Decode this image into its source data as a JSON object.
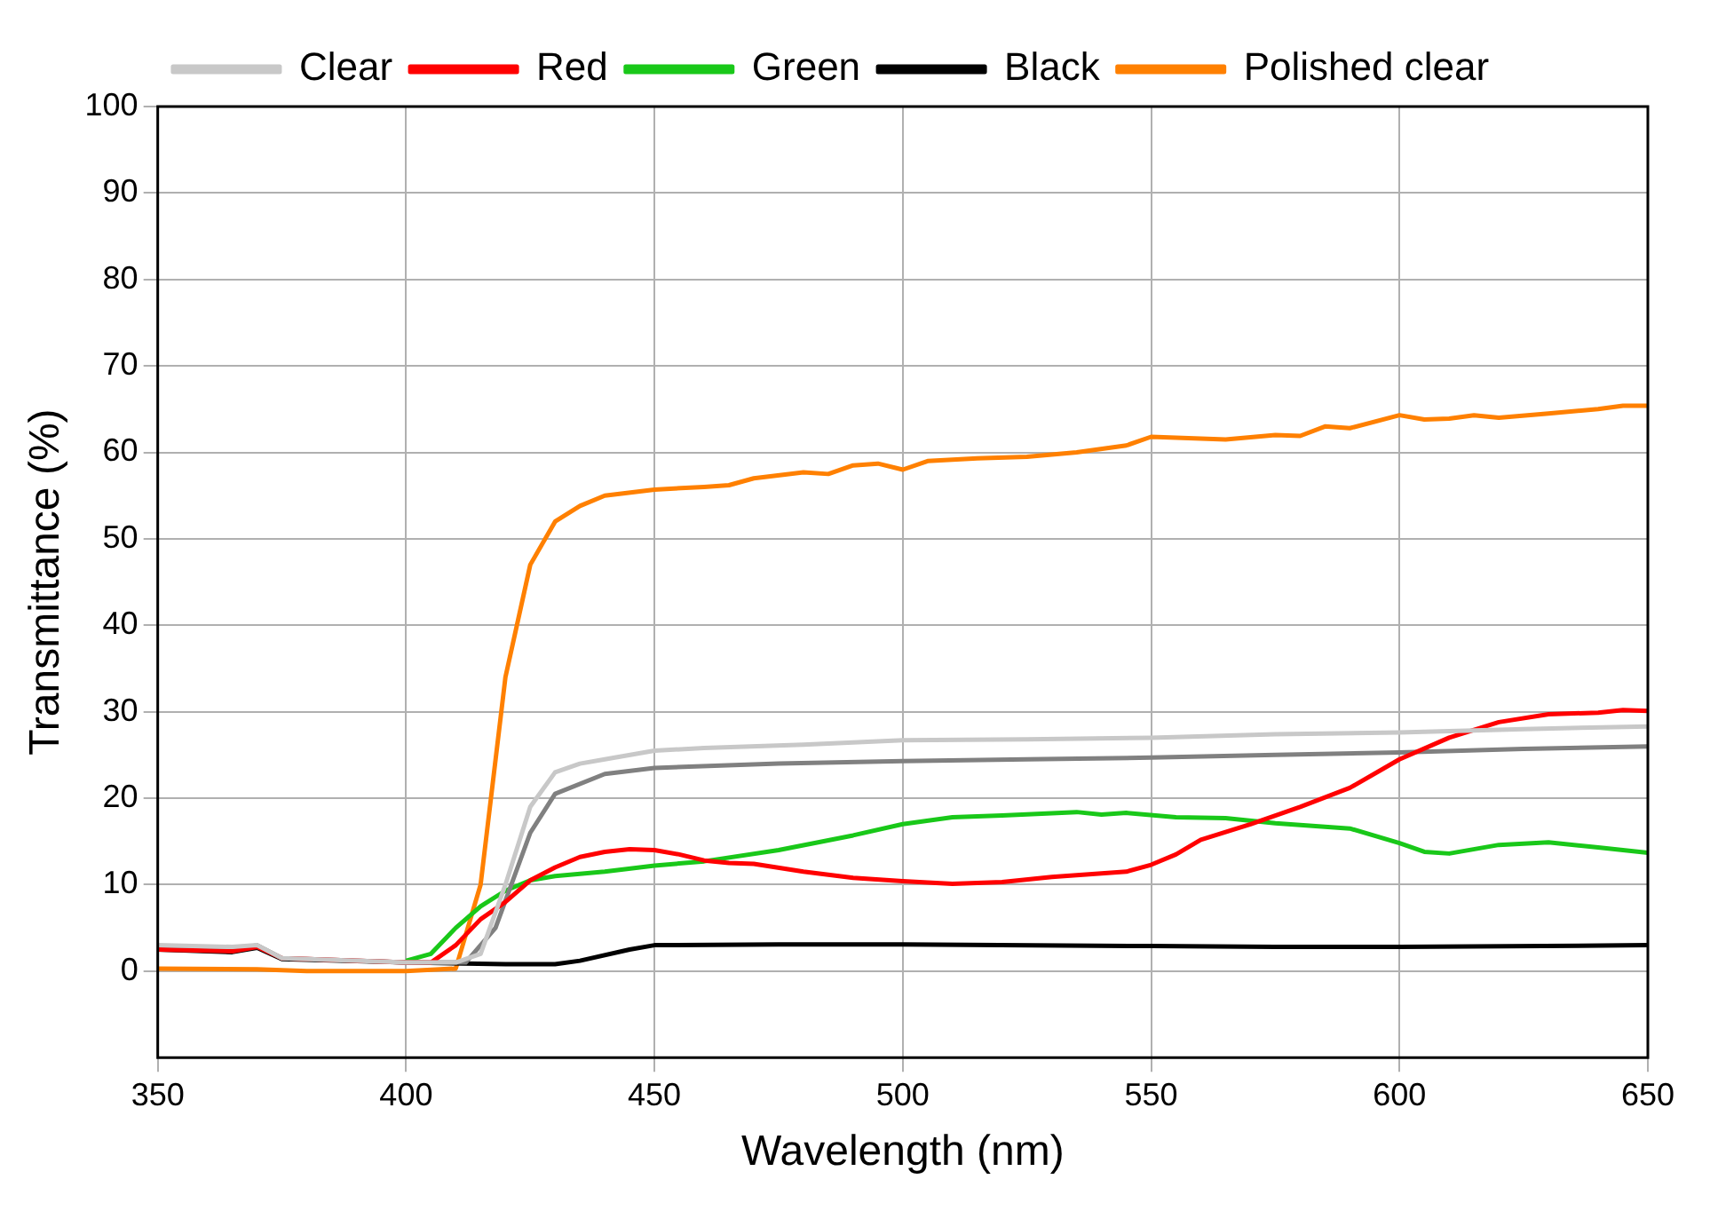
{
  "chart_data": {
    "type": "line",
    "xlabel": "Wavelength (nm)",
    "ylabel": "Transmittance (%)",
    "xlim": [
      350,
      650
    ],
    "xticks": [
      350,
      400,
      450,
      500,
      550,
      600,
      650
    ],
    "ylim": [
      -10,
      100
    ],
    "yticks": [
      0,
      10,
      20,
      30,
      40,
      50,
      60,
      70,
      80,
      90,
      100
    ],
    "grid": true,
    "legend": "top",
    "marker": "none",
    "line_style": "solid",
    "series": [
      {
        "name": "Clear",
        "color": "#c8c8c8",
        "x": [
          350,
          365,
          370,
          375,
          400,
          410,
          415,
          420,
          425,
          430,
          435,
          440,
          450,
          460,
          480,
          500,
          525,
          550,
          575,
          600,
          625,
          650
        ],
        "values": [
          3,
          2.8,
          3,
          1.5,
          1,
          1,
          2,
          10,
          19,
          23,
          24,
          24.5,
          25.5,
          25.8,
          26.2,
          26.7,
          26.8,
          27,
          27.4,
          27.6,
          28,
          28.3
        ]
      },
      {
        "name": "Red",
        "color": "#ff0000",
        "x": [
          350,
          365,
          370,
          375,
          400,
          405,
          410,
          415,
          420,
          425,
          430,
          435,
          440,
          445,
          450,
          455,
          460,
          465,
          470,
          480,
          490,
          500,
          510,
          520,
          530,
          545,
          550,
          555,
          560,
          570,
          580,
          590,
          600,
          610,
          620,
          630,
          640,
          645,
          650
        ],
        "values": [
          2.5,
          2.3,
          2.8,
          1.5,
          1,
          1,
          3,
          6,
          8,
          10.5,
          12,
          13.2,
          13.8,
          14.1,
          14,
          13.5,
          12.8,
          12.5,
          12.4,
          11.5,
          10.8,
          10.4,
          10.1,
          10.3,
          10.9,
          11.5,
          12.3,
          13.5,
          15.2,
          17,
          19,
          21.2,
          24.5,
          27,
          28.8,
          29.7,
          29.9,
          30.2,
          30.1
        ]
      },
      {
        "color": "#808080",
        "x": [
          350,
          365,
          370,
          375,
          400,
          412,
          418,
          425,
          430,
          440,
          450,
          475,
          500,
          525,
          550,
          575,
          600,
          625,
          650
        ],
        "values": [
          2.7,
          2.5,
          3,
          1.5,
          1,
          1,
          5,
          16,
          20.5,
          22.8,
          23.5,
          24,
          24.3,
          24.5,
          24.7,
          25,
          25.3,
          25.7,
          26
        ]
      },
      {
        "name": "Green",
        "color": "#19c819",
        "x": [
          400,
          405,
          410,
          415,
          420,
          425,
          430,
          440,
          450,
          460,
          475,
          490,
          500,
          510,
          520,
          535,
          540,
          545,
          555,
          565,
          575,
          590,
          600,
          605,
          610,
          620,
          630,
          640,
          650
        ],
        "values": [
          1.2,
          2,
          5,
          7.5,
          9.3,
          10.5,
          11,
          11.5,
          12.2,
          12.7,
          14,
          15.7,
          17,
          17.8,
          18,
          18.4,
          18.1,
          18.3,
          17.8,
          17.7,
          17.1,
          16.5,
          14.8,
          13.8,
          13.6,
          14.6,
          14.9,
          14.3,
          13.7
        ]
      },
      {
        "name": "Black",
        "color": "#000000",
        "x": [
          350,
          365,
          370,
          375,
          400,
          420,
          430,
          435,
          445,
          450,
          475,
          500,
          550,
          575,
          600,
          650
        ],
        "values": [
          2.5,
          2.2,
          2.7,
          1.4,
          1,
          0.8,
          0.8,
          1.2,
          2.5,
          3,
          3.1,
          3.1,
          2.9,
          2.8,
          2.8,
          3
        ]
      },
      {
        "name": "Polished clear",
        "color": "#ff8000",
        "x": [
          350,
          370,
          380,
          400,
          410,
          415,
          420,
          425,
          430,
          435,
          440,
          450,
          460,
          465,
          470,
          480,
          485,
          490,
          495,
          500,
          505,
          515,
          525,
          535,
          545,
          550,
          565,
          575,
          580,
          585,
          590,
          600,
          605,
          610,
          615,
          620,
          630,
          640,
          645,
          650
        ],
        "values": [
          0.3,
          0.2,
          0,
          0,
          0.3,
          10,
          34,
          47,
          52,
          53.8,
          55,
          55.7,
          56,
          56.2,
          57,
          57.7,
          57.5,
          58.5,
          58.7,
          58,
          59,
          59.3,
          59.5,
          60,
          60.8,
          61.8,
          61.5,
          62,
          61.9,
          63,
          62.8,
          64.3,
          63.8,
          63.9,
          64.3,
          64,
          64.5,
          65,
          65.4,
          65.4
        ]
      }
    ]
  }
}
